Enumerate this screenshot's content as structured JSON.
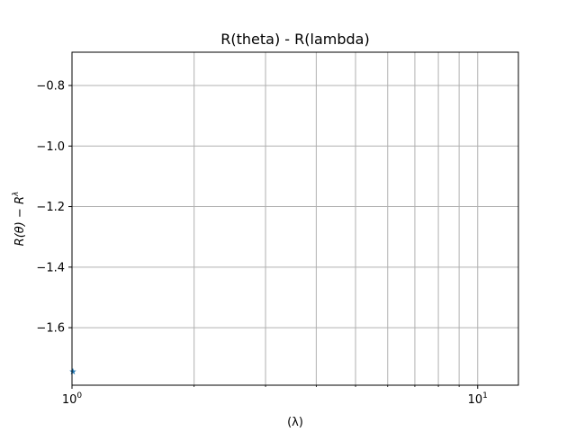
{
  "chart_data": {
    "type": "scatter",
    "title": "R(theta) - R(lambda)",
    "xlabel": "(λ)",
    "ylabel": "R(θ) − R^λ",
    "ylabel_main": "R(θ) − R",
    "ylabel_sup": "λ",
    "x_scale": "log",
    "xlim": [
      1.0,
      12.6
    ],
    "ylim": [
      -1.79,
      -0.69
    ],
    "grid": true,
    "x_major_ticks": [
      {
        "value": 1,
        "label": "10",
        "exp": "0"
      },
      {
        "value": 10,
        "label": "10",
        "exp": "1"
      }
    ],
    "x_minor_ticks": [
      2,
      3,
      4,
      5,
      6,
      7,
      8,
      9
    ],
    "y_ticks": [
      {
        "value": -0.8,
        "label": "−0.8"
      },
      {
        "value": -1.0,
        "label": "−1.0"
      },
      {
        "value": -1.2,
        "label": "−1.2"
      },
      {
        "value": -1.4,
        "label": "−1.4"
      },
      {
        "value": -1.6,
        "label": "−1.6"
      }
    ],
    "series": [
      {
        "marker": "star",
        "color": "#1f77b4",
        "points": [
          {
            "x": 1.0,
            "y": -1.745
          }
        ]
      }
    ]
  }
}
